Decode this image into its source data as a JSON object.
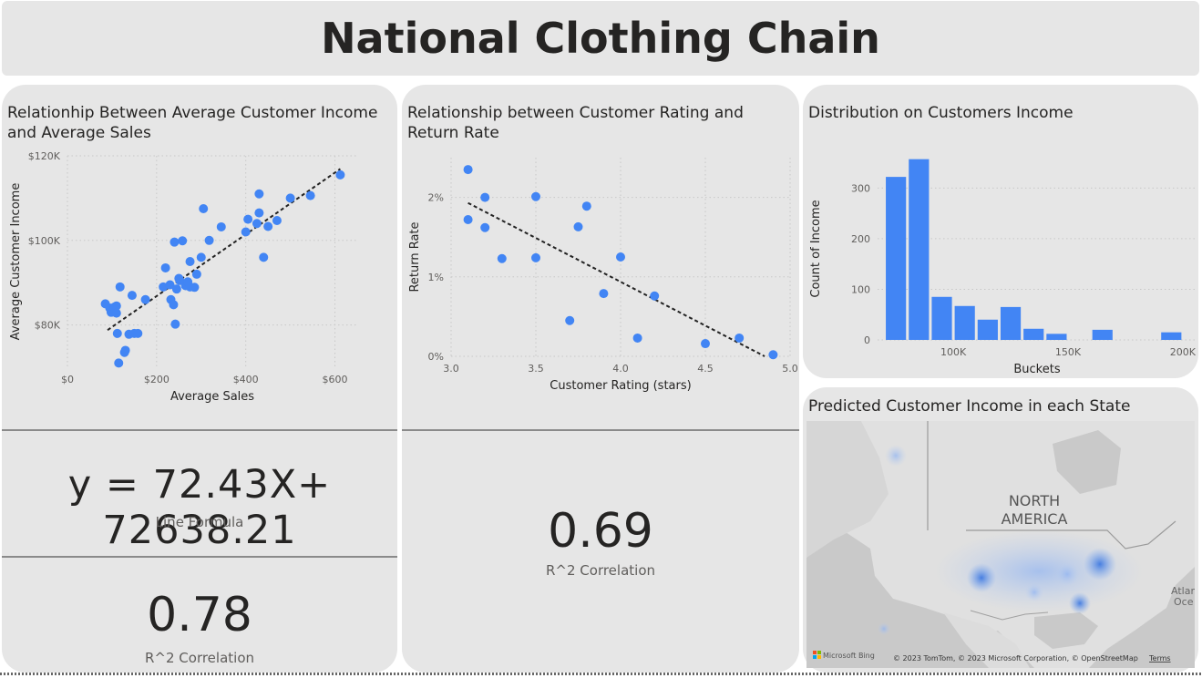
{
  "page_title": "National Clothing Chain",
  "colors": {
    "accent": "#4285f4",
    "card_bg": "#e6e6e6",
    "text": "#252423"
  },
  "kpis": {
    "formula": {
      "value": "y = 72.43X+ 72638.21",
      "label": "Line Formula"
    },
    "income_r2": {
      "value": "0.78",
      "label": "R^2 Correlation"
    },
    "rating_r2": {
      "value": "0.69",
      "label": "R^2 Correlation"
    }
  },
  "map": {
    "title": "Predicted Customer Income in each State",
    "labels": [
      "NORTH",
      "AMERICA",
      "Atlan",
      "Oce"
    ],
    "attribution": "© 2023 TomTom, © 2023 Microsoft Corporation, © OpenStreetMap",
    "terms": "Terms",
    "brand": "Microsoft Bing"
  },
  "chart_data": [
    {
      "type": "scatter",
      "title": "Relationhip Between Average Customer Income and Average Sales",
      "xlabel": "Average Sales",
      "ylabel": "Average Customer Income",
      "xlim": [
        0,
        650
      ],
      "ylim": [
        70000,
        120000
      ],
      "xticks": [
        0,
        200,
        400,
        600
      ],
      "xtick_labels": [
        "$0",
        "$200",
        "$400",
        "$600"
      ],
      "yticks": [
        80000,
        100000,
        120000
      ],
      "ytick_labels": [
        "$80K",
        "$100K",
        "$120K"
      ],
      "grid": true,
      "trendline": {
        "x": [
          90,
          612
        ],
        "y": [
          78800,
          116900
        ]
      },
      "points": [
        [
          85,
          85000
        ],
        [
          95,
          84000
        ],
        [
          98,
          83000
        ],
        [
          105,
          84200
        ],
        [
          110,
          84500
        ],
        [
          110,
          82800
        ],
        [
          112,
          78000
        ],
        [
          115,
          71000
        ],
        [
          118,
          89000
        ],
        [
          128,
          73500
        ],
        [
          130,
          74000
        ],
        [
          138,
          77800
        ],
        [
          145,
          87000
        ],
        [
          150,
          78000
        ],
        [
          158,
          78000
        ],
        [
          175,
          86000
        ],
        [
          215,
          89000
        ],
        [
          220,
          93500
        ],
        [
          230,
          89500
        ],
        [
          232,
          86000
        ],
        [
          238,
          84800
        ],
        [
          240,
          99600
        ],
        [
          242,
          80200
        ],
        [
          245,
          88500
        ],
        [
          250,
          91000
        ],
        [
          252,
          90500
        ],
        [
          258,
          99900
        ],
        [
          265,
          89300
        ],
        [
          270,
          90200
        ],
        [
          275,
          89000
        ],
        [
          275,
          95000
        ],
        [
          285,
          88900
        ],
        [
          290,
          92000
        ],
        [
          300,
          96000
        ],
        [
          305,
          107500
        ],
        [
          318,
          100000
        ],
        [
          345,
          103200
        ],
        [
          400,
          102000
        ],
        [
          405,
          105000
        ],
        [
          425,
          104000
        ],
        [
          430,
          106500
        ],
        [
          430,
          111000
        ],
        [
          440,
          96000
        ],
        [
          450,
          103300
        ],
        [
          470,
          104700
        ],
        [
          500,
          110000
        ],
        [
          545,
          110600
        ],
        [
          612,
          115500
        ]
      ]
    },
    {
      "type": "scatter",
      "title": "Relationship between Customer Rating and Return Rate",
      "xlabel": "Customer Rating (stars)",
      "ylabel": "Return Rate",
      "xlim": [
        3.0,
        5.0
      ],
      "ylim": [
        0,
        0.025
      ],
      "xticks": [
        3.0,
        3.5,
        4.0,
        4.5,
        5.0
      ],
      "xtick_labels": [
        "3.0",
        "3.5",
        "4.0",
        "4.5",
        "5.0"
      ],
      "yticks": [
        0,
        0.01,
        0.02
      ],
      "ytick_labels": [
        "0%",
        "1%",
        "2%"
      ],
      "grid": true,
      "trendline": {
        "x": [
          3.1,
          4.85
        ],
        "y": [
          0.0193,
          0.0
        ]
      },
      "points": [
        [
          3.1,
          0.0235
        ],
        [
          3.1,
          0.0172
        ],
        [
          3.2,
          0.02
        ],
        [
          3.2,
          0.0162
        ],
        [
          3.3,
          0.0123
        ],
        [
          3.5,
          0.0201
        ],
        [
          3.5,
          0.0124
        ],
        [
          3.7,
          0.0045
        ],
        [
          3.75,
          0.0163
        ],
        [
          3.8,
          0.0189
        ],
        [
          3.9,
          0.0079
        ],
        [
          4.0,
          0.0125
        ],
        [
          4.1,
          0.0023
        ],
        [
          4.2,
          0.0076
        ],
        [
          4.5,
          0.0016
        ],
        [
          4.7,
          0.0023
        ],
        [
          4.9,
          0.0002
        ]
      ]
    },
    {
      "type": "bar",
      "title": "Distribution on Customers Income",
      "xlabel": "Buckets",
      "ylabel": "Count of Income",
      "xlim": [
        67000,
        206000
      ],
      "ylim": [
        0,
        360
      ],
      "xticks": [
        100000,
        150000,
        200000
      ],
      "xtick_labels": [
        "100K",
        "150K",
        "200K"
      ],
      "yticks": [
        0,
        100,
        200,
        300
      ],
      "ytick_labels": [
        "0",
        "100",
        "200",
        "300"
      ],
      "grid": true,
      "bin_width": 10000,
      "bins": [
        75000,
        85000,
        95000,
        105000,
        115000,
        125000,
        135000,
        145000,
        165000,
        195000
      ],
      "values": [
        322,
        357,
        85,
        67,
        40,
        65,
        22,
        12,
        20,
        15
      ]
    }
  ]
}
